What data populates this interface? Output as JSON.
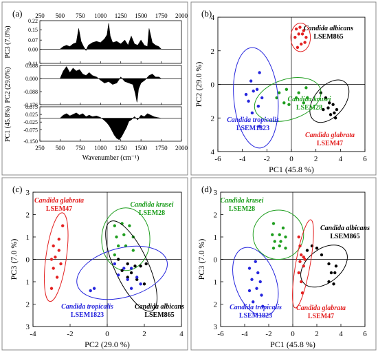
{
  "chart_data": [
    {
      "panel": "(a)",
      "type": "line",
      "xlabel": "Wavenumber (cm⁻¹)",
      "xlim": [
        250,
        2000
      ],
      "x_ticks": [
        "250",
        "500",
        "750",
        "1000",
        "1250",
        "1500",
        "1750",
        "2000"
      ],
      "subplots": [
        {
          "ylabel": "PC3 (7.0%)",
          "ylim": [
            -0.11,
            0.22
          ],
          "y_ticks": [
            "0.22",
            "0.15",
            "0.07",
            "0.00",
            "-0.11"
          ],
          "y_tick_values": [
            0.22,
            0.15,
            0.07,
            0.0,
            -0.11
          ],
          "x": [
            250,
            500,
            540,
            580,
            620,
            660,
            700,
            730,
            760,
            790,
            820,
            850,
            900,
            950,
            1000,
            1050,
            1080,
            1100,
            1120,
            1150,
            1200,
            1250,
            1300,
            1340,
            1380,
            1420,
            1460,
            1500,
            1540,
            1580,
            1600,
            1640,
            1680,
            1720,
            1750,
            2000
          ],
          "values": [
            0,
            0,
            0.02,
            0.03,
            0.02,
            0.04,
            0.05,
            0.16,
            0.06,
            0.02,
            -0.01,
            0.03,
            0.05,
            0.06,
            0.05,
            0.08,
            0.11,
            0.2,
            0.1,
            0.05,
            0.06,
            0.04,
            0.07,
            0.03,
            0.1,
            0.04,
            0.03,
            0.07,
            0.03,
            0.02,
            0.16,
            0.05,
            0.03,
            0.02,
            0,
            0
          ]
        },
        {
          "ylabel": "PC2 (29.0%)",
          "ylim": [
            -0.176,
            0.088
          ],
          "y_ticks": [
            "0.088",
            "0.000",
            "-0.088",
            "-0.176"
          ],
          "y_tick_values": [
            0.088,
            0.0,
            -0.088,
            -0.176
          ],
          "x": [
            250,
            500,
            540,
            580,
            620,
            660,
            700,
            740,
            780,
            820,
            860,
            900,
            950,
            1000,
            1050,
            1100,
            1150,
            1200,
            1250,
            1300,
            1350,
            1400,
            1430,
            1450,
            1470,
            1500,
            1550,
            1600,
            1640,
            1680,
            1720,
            1750,
            2000
          ],
          "values": [
            0,
            0,
            0.05,
            0.08,
            0.04,
            0.07,
            0.05,
            0.06,
            0.03,
            0.02,
            0.04,
            0.02,
            0.01,
            -0.01,
            -0.03,
            -0.02,
            -0.04,
            -0.03,
            0.01,
            -0.02,
            -0.03,
            -0.04,
            -0.1,
            -0.16,
            -0.07,
            -0.03,
            -0.01,
            0.02,
            0.03,
            0.01,
            0.01,
            0,
            0
          ]
        },
        {
          "ylabel": "PC1 (45.8%)",
          "ylim": [
            -0.15,
            0.075
          ],
          "y_ticks": [
            "0.075",
            "0.025",
            "-0.025",
            "-0.075",
            "-0.150"
          ],
          "y_tick_values": [
            0.075,
            0.025,
            -0.025,
            -0.075,
            -0.15
          ],
          "x": [
            250,
            500,
            540,
            580,
            620,
            660,
            700,
            740,
            780,
            820,
            860,
            900,
            950,
            1000,
            1040,
            1080,
            1110,
            1140,
            1170,
            1200,
            1230,
            1260,
            1290,
            1320,
            1350,
            1380,
            1420,
            1460,
            1500,
            1540,
            1580,
            1620,
            1660,
            1700,
            1750,
            2000
          ],
          "values": [
            0,
            0,
            0.02,
            0.03,
            0.015,
            0.025,
            0.035,
            0.02,
            0.03,
            0.01,
            0.02,
            0.01,
            0.015,
            0.005,
            -0.01,
            -0.03,
            -0.05,
            -0.08,
            -0.11,
            -0.13,
            -0.14,
            -0.12,
            -0.09,
            -0.06,
            -0.02,
            -0.01,
            0.01,
            -0.01,
            0.02,
            0.01,
            0.03,
            0.02,
            0.01,
            0.005,
            0,
            0
          ]
        }
      ]
    },
    {
      "panel": "(b)",
      "type": "scatter",
      "xlabel": "PC1 (45.8 %)",
      "ylabel": "PC2 (29.0 %)",
      "xlim": [
        -6,
        6
      ],
      "ylim": [
        4,
        -4
      ],
      "x_ticks": [
        -6,
        -4,
        -2,
        0,
        2,
        4,
        6
      ],
      "y_ticks": [
        -4,
        -2,
        0,
        2,
        4
      ],
      "series": [
        {
          "name1": "Candida albicans",
          "name2": "LSEM865",
          "color": "#000000",
          "points": [
            [
              2.6,
              1.5
            ],
            [
              3.2,
              1.8
            ],
            [
              3.6,
              2.0
            ],
            [
              3.0,
              1.4
            ],
            [
              3.4,
              1.2
            ],
            [
              3.7,
              1.5
            ],
            [
              3.1,
              1.1
            ],
            [
              2.8,
              0.8
            ],
            [
              2.4,
              0.5
            ],
            [
              3.5,
              1.7
            ]
          ],
          "ellipse": {
            "cx": 3.1,
            "cy": 1.0,
            "rx": 2.0,
            "ry": 0.9,
            "angle": -50
          }
        },
        {
          "name1": "Candida krusei",
          "name2": "LSEM28",
          "color": "#1f9e1f",
          "points": [
            [
              -1.2,
              0.8
            ],
            [
              -0.6,
              1.1
            ],
            [
              -0.2,
              1.2
            ],
            [
              0.4,
              0.8
            ],
            [
              1.0,
              1.1
            ],
            [
              1.3,
              0.8
            ],
            [
              -1.0,
              0.5
            ],
            [
              -0.4,
              0.3
            ],
            [
              0.6,
              0.5
            ],
            [
              1.2,
              0.2
            ]
          ],
          "ellipse": {
            "cx": -0.3,
            "cy": 0.9,
            "rx": 2.8,
            "ry": 1.2,
            "angle": -18
          }
        },
        {
          "name1": "Candida tropicalis",
          "name2": "LSEM1823",
          "color": "#2525dd",
          "points": [
            [
              -2.6,
              2.5
            ],
            [
              -3.2,
              1.7
            ],
            [
              -3.5,
              1.0
            ],
            [
              -3.7,
              0.6
            ],
            [
              -2.7,
              1.3
            ],
            [
              -2.4,
              0.8
            ],
            [
              -2.8,
              0.3
            ],
            [
              -3.3,
              -0.2
            ],
            [
              -2.6,
              -0.7
            ],
            [
              -3.1,
              0.4
            ]
          ],
          "ellipse": {
            "cx": -2.9,
            "cy": 0.8,
            "rx": 1.8,
            "ry": 3.0,
            "angle": -5
          }
        },
        {
          "name1": "Candida glabrata",
          "name2": "LSEM47",
          "color": "#e32020",
          "points": [
            [
              0.5,
              -2.2
            ],
            [
              0.8,
              -2.4
            ],
            [
              1.1,
              -2.5
            ],
            [
              0.3,
              -2.8
            ],
            [
              0.6,
              -3.0
            ],
            [
              0.9,
              -3.0
            ],
            [
              1.2,
              -2.8
            ],
            [
              0.4,
              -3.3
            ],
            [
              0.7,
              -3.4
            ],
            [
              1.0,
              -3.2
            ]
          ],
          "ellipse": {
            "cx": 0.75,
            "cy": -2.8,
            "rx": 0.8,
            "ry": 0.85,
            "angle": 0
          }
        }
      ]
    },
    {
      "panel": "(c)",
      "type": "scatter",
      "xlabel": "PC2 (29.0 %)",
      "ylabel": "PC3 (7.0 %)",
      "xlim": [
        -4,
        4
      ],
      "ylim": [
        -3,
        3
      ],
      "x_ticks": [
        -4,
        -2,
        0,
        2,
        4
      ],
      "y_ticks": [
        -3,
        -2,
        -1,
        0,
        1,
        2,
        3
      ],
      "series": [
        {
          "name1": "Candida glabrata",
          "name2": "LSEM47",
          "color": "#e32020",
          "points": [
            [
              -2.4,
              1.5
            ],
            [
              -2.6,
              0.9
            ],
            [
              -2.9,
              0.6
            ],
            [
              -2.6,
              0.4
            ],
            [
              -2.8,
              0.1
            ],
            [
              -3.0,
              0.0
            ],
            [
              -2.5,
              -0.2
            ],
            [
              -2.9,
              -0.4
            ],
            [
              -2.7,
              -0.8
            ],
            [
              -3.0,
              -1.3
            ]
          ],
          "ellipse": {
            "cx": -2.75,
            "cy": 0.1,
            "rx": 0.55,
            "ry": 2.0,
            "angle": 8
          }
        },
        {
          "name1": "Candida krusei",
          "name2": "LSEM28",
          "color": "#1f9e1f",
          "points": [
            [
              0.4,
              1.5
            ],
            [
              0.8,
              1.6
            ],
            [
              1.2,
              1.5
            ],
            [
              1.4,
              1.0
            ],
            [
              0.5,
              1.0
            ],
            [
              0.9,
              1.1
            ],
            [
              0.6,
              0.6
            ],
            [
              1.0,
              0.6
            ],
            [
              1.4,
              0.4
            ],
            [
              0.4,
              0.2
            ]
          ],
          "ellipse": {
            "cx": 1.0,
            "cy": 0.9,
            "rx": 1.3,
            "ry": 1.4,
            "angle": 0
          }
        },
        {
          "name1": "Candida albicans",
          "name2": "LSEM865",
          "color": "#000000",
          "points": [
            [
              0.6,
              0.0
            ],
            [
              1.1,
              -0.2
            ],
            [
              1.5,
              -0.3
            ],
            [
              1.8,
              -0.3
            ],
            [
              2.1,
              -0.2
            ],
            [
              0.8,
              -0.5
            ],
            [
              1.3,
              -0.6
            ],
            [
              1.6,
              -0.9
            ],
            [
              2.0,
              -1.1
            ],
            [
              1.1,
              -0.8
            ]
          ],
          "ellipse": {
            "cx": 1.3,
            "cy": -0.3,
            "rx": 0.9,
            "ry": 2.2,
            "angle": -25
          }
        },
        {
          "name1": "Candida tropicalis",
          "name2": "LSEM1823",
          "color": "#2525dd",
          "points": [
            [
              0.4,
              -0.2
            ],
            [
              0.9,
              -0.4
            ],
            [
              1.3,
              -0.4
            ],
            [
              0.6,
              -0.7
            ],
            [
              1.1,
              -0.9
            ],
            [
              1.6,
              -0.8
            ],
            [
              1.8,
              -1.1
            ],
            [
              1.3,
              -1.3
            ],
            [
              -0.7,
              -1.3
            ],
            [
              -0.9,
              -1.4
            ]
          ],
          "ellipse": {
            "cx": 0.8,
            "cy": -0.6,
            "rx": 2.5,
            "ry": 1.1,
            "angle": -15
          }
        }
      ]
    },
    {
      "panel": "(d)",
      "type": "scatter",
      "xlabel": "PC1 (45.8 %)",
      "ylabel": "PC3 (7.0 %)",
      "xlim": [
        -6,
        6
      ],
      "ylim": [
        -3,
        3
      ],
      "x_ticks": [
        -6,
        -4,
        -2,
        0,
        2,
        4,
        6
      ],
      "y_ticks": [
        -3,
        -2,
        -1,
        0,
        1,
        2,
        3
      ],
      "series": [
        {
          "name1": "Candida krusei",
          "name2": "LSEM28",
          "color": "#1f9e1f",
          "points": [
            [
              -1.6,
              1.6
            ],
            [
              -0.8,
              1.4
            ],
            [
              -1.7,
              1.1
            ],
            [
              -1.1,
              1.1
            ],
            [
              -0.6,
              1.0
            ],
            [
              -1.5,
              0.8
            ],
            [
              -1.0,
              0.8
            ],
            [
              -1.6,
              0.5
            ],
            [
              -1.1,
              0.6
            ],
            [
              -0.6,
              0.5
            ]
          ],
          "ellipse": {
            "cx": -1.2,
            "cy": 1.1,
            "rx": 2.1,
            "ry": 1.1,
            "angle": -5
          }
        },
        {
          "name1": "Candida albicans",
          "name2": "LSEM865",
          "color": "#000000",
          "points": [
            [
              1.6,
              0.6
            ],
            [
              2.0,
              0.5
            ],
            [
              1.2,
              0.4
            ],
            [
              2.4,
              0.2
            ],
            [
              3.0,
              -0.2
            ],
            [
              3.6,
              -0.3
            ],
            [
              3.2,
              -0.6
            ],
            [
              3.5,
              -0.6
            ],
            [
              3.0,
              -1.0
            ],
            [
              3.4,
              -1.1
            ]
          ],
          "ellipse": {
            "cx": 2.6,
            "cy": -0.3,
            "rx": 2.2,
            "ry": 0.75,
            "angle": -38
          }
        },
        {
          "name1": "Candida glabrata",
          "name2": "LSEM47",
          "color": "#e32020",
          "points": [
            [
              0.5,
              1.0
            ],
            [
              0.6,
              0.6
            ],
            [
              0.7,
              0.2
            ],
            [
              0.9,
              0.1
            ],
            [
              1.0,
              0.0
            ],
            [
              0.6,
              -0.1
            ],
            [
              0.9,
              -0.3
            ],
            [
              0.5,
              -0.6
            ],
            [
              0.7,
              -1.0
            ],
            [
              0.8,
              -1.5
            ]
          ],
          "ellipse": {
            "cx": 0.85,
            "cy": -0.2,
            "rx": 0.6,
            "ry": 2.0,
            "angle": 10
          }
        },
        {
          "name1": "Candida tropicalis",
          "name2": "LSEM1823",
          "color": "#2525dd",
          "points": [
            [
              -3.1,
              -0.1
            ],
            [
              -3.6,
              -0.4
            ],
            [
              -2.9,
              -0.6
            ],
            [
              -3.4,
              -0.9
            ],
            [
              -2.7,
              -1.0
            ],
            [
              -3.0,
              -1.3
            ],
            [
              -3.6,
              -1.4
            ],
            [
              -2.6,
              -1.6
            ],
            [
              -3.3,
              -1.9
            ],
            [
              -2.5,
              -2.1
            ]
          ],
          "ellipse": {
            "cx": -3.1,
            "cy": -1.0,
            "rx": 1.7,
            "ry": 1.6,
            "angle": -20
          }
        }
      ]
    }
  ],
  "labels": {
    "panel_a": "(a)",
    "panel_b": "(b)",
    "panel_c": "(c)",
    "panel_d": "(d)"
  }
}
